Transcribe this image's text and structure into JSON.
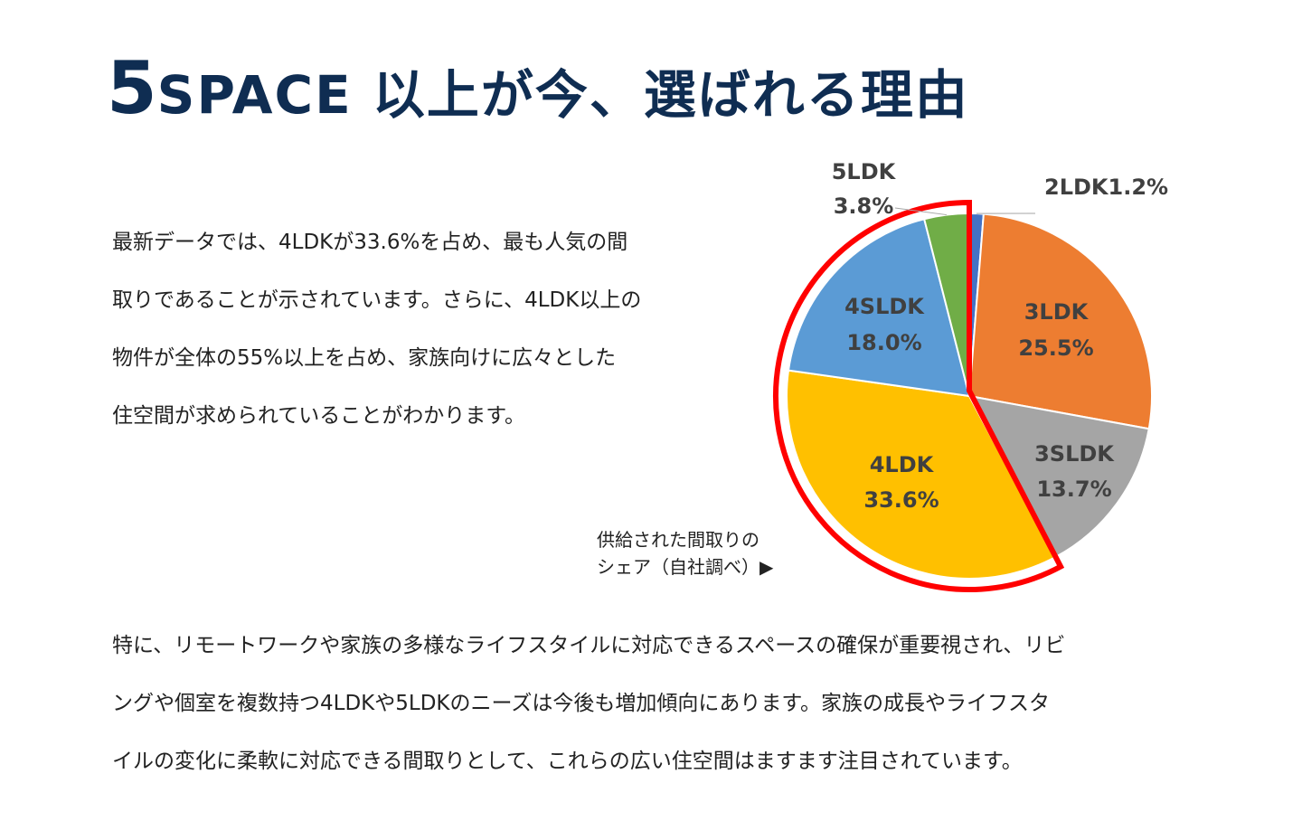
{
  "header": {
    "title_num": "5",
    "title_rest": "SPACE 以上が今、選ばれる理由"
  },
  "intro": {
    "lines": [
      "最新データでは、4LDKが33.6%を占め、最も人気の間",
      "取りであることが示されています。さらに、4LDK以上の",
      "物件が全体の55%以上を占め、家族向けに広々とした",
      "住空間が求められていることがわかります。"
    ]
  },
  "caption": {
    "lines": [
      "供給された間取りの",
      "シェア（自社調べ）▶"
    ]
  },
  "body": {
    "lines": [
      "特に、リモートワークや家族の多様なライフスタイルに対応できるスペースの確保が重要視され、リビ",
      "ングや個室を複数持つ4LDKや5LDKのニーズは今後も増加傾向にあります。家族の成長やライフスタ",
      "イルの変化に柔軟に対応できる間取りとして、これらの広い住空間はますます注目されています。"
    ]
  },
  "chart_data": {
    "type": "pie",
    "start_angle": "12 o'clock",
    "direction": "clockwise",
    "slices": [
      {
        "name": "2LDK",
        "value": 1.2,
        "label": "2LDK1.2%",
        "color": "#4472c4"
      },
      {
        "name": "3LDK",
        "value": 25.5,
        "label_name": "3LDK",
        "label_value": "25.5%",
        "color": "#ed7d31"
      },
      {
        "name": "3SLDK",
        "value": 13.7,
        "label_name": "3SLDK",
        "label_value": "13.7%",
        "color": "#a5a5a5"
      },
      {
        "name": "4LDK",
        "value": 33.6,
        "label_name": "4LDK",
        "label_value": "33.6%",
        "color": "#ffc000"
      },
      {
        "name": "4SLDK",
        "value": 18.0,
        "label_name": "4SLDK",
        "label_value": "18.0%",
        "color": "#5b9bd5"
      },
      {
        "name": "5LDK",
        "value": 3.8,
        "label_name": "5LDK",
        "label_value": "3.8%",
        "color": "#70ad47"
      }
    ],
    "highlight": {
      "from": "4LDK",
      "to": "5LDK",
      "color": "#ff0000"
    }
  }
}
